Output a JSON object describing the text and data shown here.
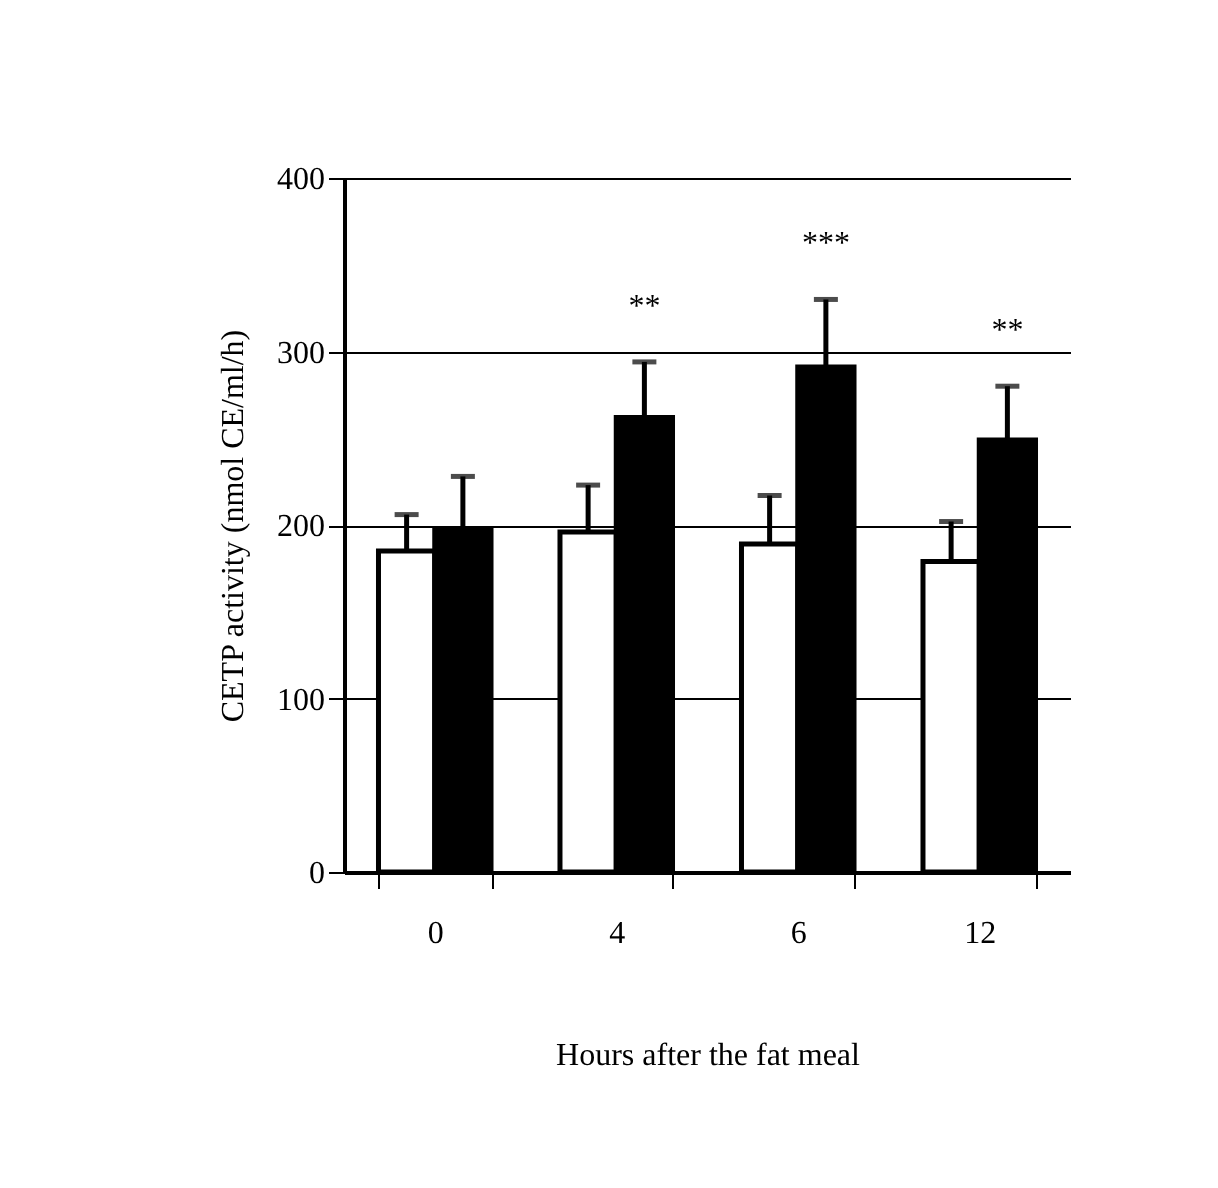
{
  "chart_data": {
    "type": "bar",
    "xlabel": "Hours after the fat meal",
    "ylabel": "CETP activity (nmol CE/ml/h)",
    "categories": [
      "0",
      "4",
      "6",
      "12"
    ],
    "series": [
      {
        "color": "#ffffff",
        "values": [
          185,
          196,
          189,
          179
        ],
        "errors": [
          [
            185,
            206
          ],
          [
            196,
            223
          ],
          [
            189,
            217
          ],
          [
            179,
            202
          ]
        ]
      },
      {
        "color": "#000000",
        "values": [
          198,
          262,
          291,
          249
        ],
        "errors": [
          [
            198,
            228
          ],
          [
            262,
            294
          ],
          [
            291,
            330
          ],
          [
            249,
            280
          ]
        ]
      }
    ],
    "ylim": [
      0,
      400
    ],
    "yticks": [
      0,
      100,
      200,
      300,
      400
    ],
    "grid": "y",
    "legend": false,
    "annotations": [
      "**",
      "***",
      "**"
    ]
  }
}
